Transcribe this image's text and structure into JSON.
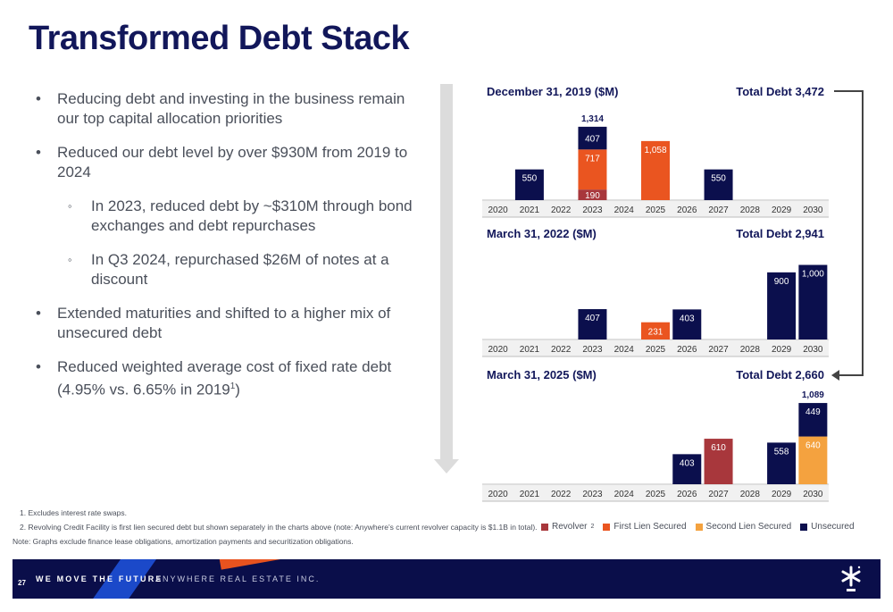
{
  "title": "Transformed Debt Stack",
  "bullets": [
    {
      "level": 1,
      "text": "Reducing debt and investing in the business remain our top capital allocation priorities"
    },
    {
      "level": 1,
      "text": "Reduced our debt level by over $930M from 2019 to 2024"
    },
    {
      "level": 2,
      "text": "In 2023, reduced debt by ~$310M through bond exchanges and debt repurchases"
    },
    {
      "level": 2,
      "text": "In Q3 2024, repurchased $26M of notes at a discount"
    },
    {
      "level": 1,
      "text": "Extended maturities and shifted to a higher mix of unsecured debt"
    },
    {
      "level": 1,
      "text": "Reduced weighted average cost of fixed rate debt (4.95% vs. 6.65% in 2019",
      "sup": "1",
      "suffix": ")"
    }
  ],
  "colors": {
    "Revolver": "#a8373c",
    "First Lien Secured": "#ea5520",
    "Second Lien Secured": "#f4a23f",
    "Unsecured": "#0b0f4d"
  },
  "legend": [
    {
      "label": "Revolver",
      "sup": "2"
    },
    {
      "label": "First Lien Secured"
    },
    {
      "label": "Second Lien Secured"
    },
    {
      "label": "Unsecured"
    }
  ],
  "chart_data": [
    {
      "type": "bar",
      "stacked": true,
      "title": "December 31, 2019 ($M)",
      "total_label": "Total Debt 3,472",
      "categories": [
        "2020",
        "2021",
        "2022",
        "2023",
        "2024",
        "2025",
        "2026",
        "2027",
        "2028",
        "2029",
        "2030"
      ],
      "series": [
        {
          "name": "Revolver",
          "values": [
            0,
            0,
            0,
            190,
            0,
            0,
            0,
            0,
            0,
            0,
            0
          ]
        },
        {
          "name": "First Lien Secured",
          "values": [
            0,
            0,
            0,
            717,
            0,
            1058,
            0,
            0,
            0,
            0,
            0
          ]
        },
        {
          "name": "Second Lien Secured",
          "values": [
            0,
            0,
            0,
            0,
            0,
            0,
            0,
            0,
            0,
            0,
            0
          ]
        },
        {
          "name": "Unsecured",
          "values": [
            0,
            550,
            0,
            407,
            0,
            0,
            0,
            550,
            0,
            0,
            0
          ]
        }
      ],
      "totals": [
        {
          "category": "2023",
          "label": "1,314"
        }
      ],
      "value_labels": {
        "2021": [
          "550"
        ],
        "2023": [
          "190",
          "717",
          "407"
        ],
        "2025": [
          "1,058"
        ],
        "2027": [
          "550"
        ]
      }
    },
    {
      "type": "bar",
      "stacked": true,
      "title": "March 31, 2022 ($M)",
      "total_label": "Total Debt 2,941",
      "categories": [
        "2020",
        "2021",
        "2022",
        "2023",
        "2024",
        "2025",
        "2026",
        "2027",
        "2028",
        "2029",
        "2030"
      ],
      "series": [
        {
          "name": "Revolver",
          "values": [
            0,
            0,
            0,
            0,
            0,
            0,
            0,
            0,
            0,
            0,
            0
          ]
        },
        {
          "name": "First Lien Secured",
          "values": [
            0,
            0,
            0,
            0,
            0,
            231,
            0,
            0,
            0,
            0,
            0
          ]
        },
        {
          "name": "Second Lien Secured",
          "values": [
            0,
            0,
            0,
            0,
            0,
            0,
            0,
            0,
            0,
            0,
            0
          ]
        },
        {
          "name": "Unsecured",
          "values": [
            0,
            0,
            0,
            407,
            0,
            0,
            403,
            0,
            0,
            900,
            1000
          ]
        }
      ],
      "totals": [],
      "value_labels": {
        "2023": [
          "407"
        ],
        "2025": [
          "231"
        ],
        "2026": [
          "403"
        ],
        "2029": [
          "900"
        ],
        "2030": [
          "1,000"
        ]
      }
    },
    {
      "type": "bar",
      "stacked": true,
      "title": "March 31, 2025 ($M)",
      "total_label": "Total Debt 2,660",
      "categories": [
        "2020",
        "2021",
        "2022",
        "2023",
        "2024",
        "2025",
        "2026",
        "2027",
        "2028",
        "2029",
        "2030"
      ],
      "series": [
        {
          "name": "Revolver",
          "values": [
            0,
            0,
            0,
            0,
            0,
            0,
            0,
            610,
            0,
            0,
            0
          ]
        },
        {
          "name": "First Lien Secured",
          "values": [
            0,
            0,
            0,
            0,
            0,
            0,
            0,
            0,
            0,
            0,
            0
          ]
        },
        {
          "name": "Second Lien Secured",
          "values": [
            0,
            0,
            0,
            0,
            0,
            0,
            0,
            0,
            0,
            0,
            640
          ]
        },
        {
          "name": "Unsecured",
          "values": [
            0,
            0,
            0,
            0,
            0,
            0,
            403,
            0,
            0,
            558,
            449
          ]
        }
      ],
      "totals": [
        {
          "category": "2030",
          "label": "1,089"
        }
      ],
      "value_labels": {
        "2026": [
          "403"
        ],
        "2027": [
          "610"
        ],
        "2029": [
          "558"
        ],
        "2030": [
          "640",
          "449"
        ]
      }
    }
  ],
  "footnotes": {
    "n1": "1.   Excludes interest rate swaps.",
    "n2": "2.   Revolving Credit Facility is first lien secured debt but shown separately in the charts above (note: Anywhere’s current revolver capacity is $1.1B in total).",
    "note": "Note:  Graphs exclude finance lease obligations, amortization payments and securitization obligations."
  },
  "footer": {
    "page_number": "27",
    "tagline": "WE MOVE THE FUTURE",
    "company": "ANYWHERE REAL ESTATE INC."
  }
}
